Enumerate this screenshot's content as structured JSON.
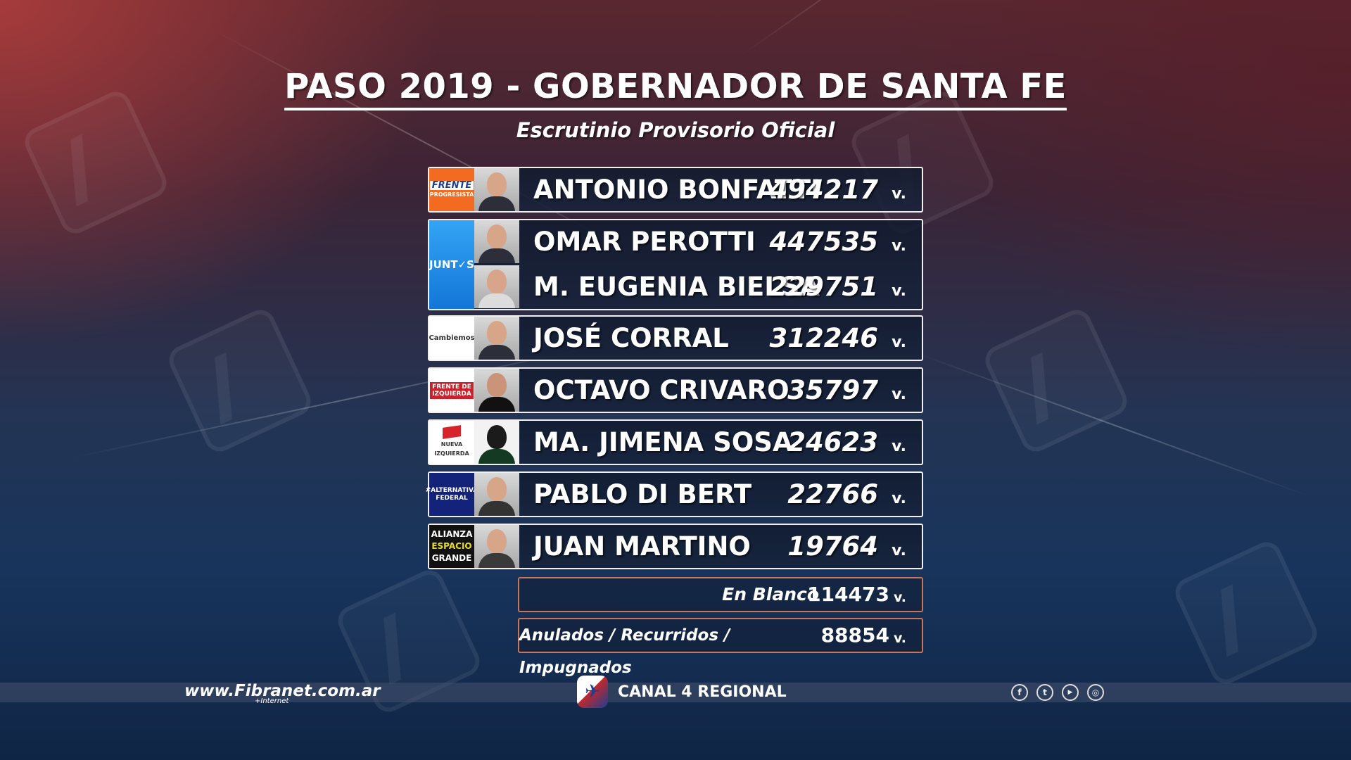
{
  "title": "PASO 2019 - GOBERNADOR DE SANTA FE",
  "subtitle": "Escrutinio Provisorio Oficial",
  "vote_suffix": "v.",
  "candidates": [
    {
      "name": "ANTONIO BONFATTI",
      "votes": "494217",
      "party_logo_lines": [
        "FRENTE",
        "PROGRESISTA"
      ]
    },
    {
      "name": "OMAR PEROTTI",
      "votes": "447535",
      "party_logo_lines": [
        "JUNT✓S"
      ]
    },
    {
      "name": "M. EUGENIA BIELSA",
      "votes": "229751"
    },
    {
      "name": "JOSÉ CORRAL",
      "votes": "312246",
      "party_logo_lines": [
        "Cambiemos"
      ]
    },
    {
      "name": "OCTAVO CRIVARO",
      "votes": "35797",
      "party_logo_lines": [
        "FRENTE DE",
        "IZQUIERDA"
      ]
    },
    {
      "name": "MA. JIMENA SOSA",
      "votes": "24623",
      "party_logo_lines": [
        "NUEVA IZQUIERDA"
      ]
    },
    {
      "name": "PABLO DI BERT",
      "votes": "22766",
      "party_logo_lines": [
        "#ALTERNATIVA",
        "FEDERAL"
      ]
    },
    {
      "name": "JUAN MARTINO",
      "votes": "19764",
      "party_logo_lines": [
        "ALIANZA",
        "ESPACIO",
        "GRANDE"
      ]
    }
  ],
  "blank": {
    "label": "En Blanco",
    "votes": "114473"
  },
  "void": {
    "label": "Anulados / Recurridos / Impugnados",
    "votes": "88854"
  },
  "footer": {
    "url": "www.Fibranet.com.ar",
    "url_sub": "+Internet",
    "channel": "CANAL 4 REGIONAL",
    "social_icons": [
      "facebook-icon",
      "twitter-icon",
      "youtube-icon",
      "instagram-icon"
    ]
  },
  "colors": {
    "frente_progresista": "#f26b21",
    "juntos": "#1f8fe8",
    "alternativa_federal": "#13237a",
    "border_extra": "#c8755a"
  }
}
